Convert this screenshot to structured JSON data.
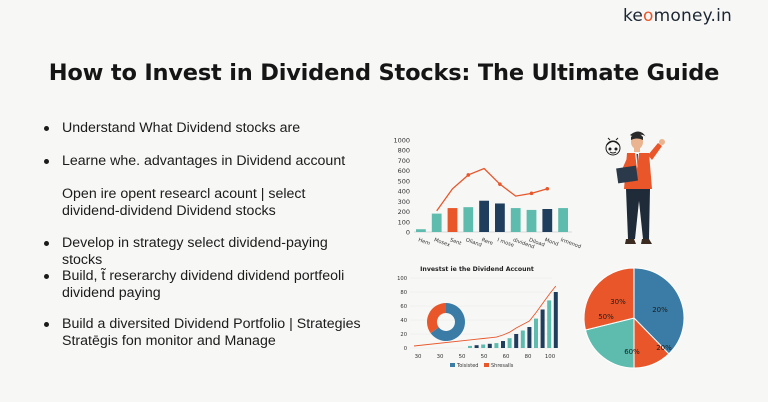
{
  "brand": {
    "name_pre": "ke",
    "name_o": "o",
    "name_post": "money.in",
    "accent": "#e8562a"
  },
  "title": "How to Invest in Dividend Stocks: The Ultimate Guide",
  "bullets": [
    {
      "text": "Understand What Dividend stocks are",
      "dot": true
    },
    {
      "text": "Learne whe. advantages in Dividend account",
      "dot": true
    },
    {
      "text": "Open ire opent researcl acount | select dividend-dividend Dividend stocks",
      "dot": false
    },
    {
      "text": "Develop in strategy select dividend-paying stocks",
      "dot": true
    },
    {
      "text": "Build, t̃ reserarchy dividend dividend portfeoli dividend paying",
      "dot": true
    },
    {
      "text": "Build a diversited Dividend Portfolio | Strategies Stratēgis fon monitor and Manage",
      "dot": true
    }
  ],
  "chart_data": [
    {
      "type": "bar",
      "categories": [
        "Hem",
        "Mosex",
        "Sent",
        "Oliand",
        "Rere",
        "I mose",
        "dividend",
        "Diload",
        "Mond",
        "lrmenod"
      ],
      "values": [
        30,
        200,
        260,
        270,
        340,
        310,
        260,
        240,
        250,
        260
      ],
      "line_values": [
        null,
        null,
        null,
        620,
        null,
        690,
        520,
        null,
        580,
        null
      ],
      "yticks": [
        "0",
        "100",
        "200",
        "300",
        "400",
        "500",
        "600",
        "700",
        "800",
        "1000"
      ],
      "colors": {
        "teal": "#5dbcae",
        "navy": "#1f3d5c",
        "orange": "#e8562a"
      }
    },
    {
      "type": "bar",
      "title": "Investst ie the Dividend Account",
      "values": [
        3,
        4,
        5,
        6,
        7,
        10,
        14,
        20,
        25,
        30,
        42,
        55,
        68,
        80
      ],
      "yticks": [
        "0",
        "20",
        "40",
        "60",
        "80",
        "100"
      ],
      "xticks": [
        "30",
        "30",
        "50",
        "50",
        "60",
        "80",
        "100"
      ],
      "legend": [
        "Toisisted",
        "Shresalls"
      ],
      "donut": {
        "teal": 0.65,
        "orange": 0.35
      }
    },
    {
      "type": "pie",
      "slices": [
        {
          "label": "30%",
          "value": 30,
          "color": "#e8562a"
        },
        {
          "label": "50%",
          "value": 50,
          "color": "#e8562a"
        },
        {
          "label": "20%",
          "value": 20,
          "color": "#3a7ca5"
        },
        {
          "label": "20%",
          "value": 20,
          "color": "#e8562a"
        },
        {
          "label": "60%",
          "value": 60,
          "color": "#5dbcae"
        }
      ]
    }
  ]
}
